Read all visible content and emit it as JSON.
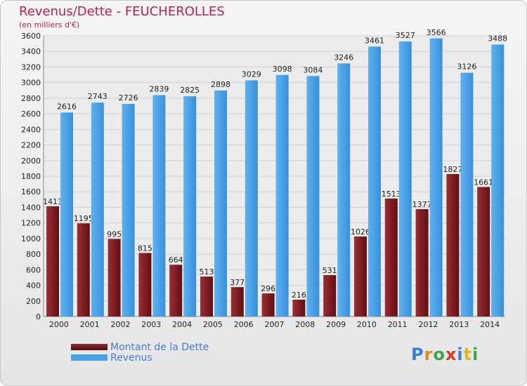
{
  "colors": {
    "dette": "#7a1f24",
    "revenus": "#4aa0e8",
    "title": "#b5225a",
    "legend_text": "#4a78e0"
  },
  "chart_data": {
    "type": "bar",
    "title": "Revenus/Dette - FEUCHEROLLES",
    "subtitle": "(en milliers d'€)",
    "categories": [
      "2000",
      "2001",
      "2002",
      "2003",
      "2004",
      "2005",
      "2006",
      "2007",
      "2008",
      "2009",
      "2010",
      "2011",
      "2012",
      "2013",
      "2014"
    ],
    "series": [
      {
        "name": "Montant de la Dette",
        "values": [
          1413,
          1195,
          995,
          815,
          664,
          513,
          377,
          296,
          216,
          531,
          1026,
          1513,
          1377,
          1827,
          1661
        ]
      },
      {
        "name": "Revenus",
        "values": [
          2616,
          2743,
          2726,
          2839,
          2825,
          2898,
          3029,
          3098,
          3084,
          3246,
          3461,
          3527,
          3566,
          3126,
          3488
        ]
      }
    ],
    "ylim": [
      0,
      3600
    ],
    "yticks": [
      0,
      200,
      400,
      600,
      800,
      1000,
      1200,
      1400,
      1600,
      1800,
      2000,
      2200,
      2400,
      2600,
      2800,
      3000,
      3200,
      3400,
      3600
    ],
    "grid": true,
    "legend": "bottom-left"
  },
  "brand": "Proxiti"
}
